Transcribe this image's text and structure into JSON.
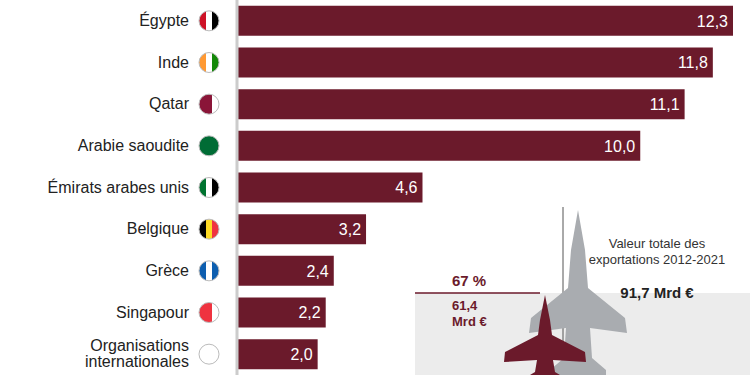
{
  "chart_data": {
    "type": "bar",
    "orientation": "horizontal",
    "categories": [
      "Égypte",
      "Inde",
      "Qatar",
      "Arabie saoudite",
      "Émirats arabes unis",
      "Belgique",
      "Grèce",
      "Singapour",
      "Organisations internationales"
    ],
    "values": [
      12.3,
      11.8,
      11.1,
      10.0,
      4.6,
      3.2,
      2.4,
      2.2,
      2.0
    ],
    "value_labels": [
      "12,3",
      "11,8",
      "11,1",
      "10,0",
      "4,6",
      "3,2",
      "2,4",
      "2,2",
      "2,0"
    ],
    "color": "#6b1a2b",
    "xlim": [
      0,
      12.3
    ],
    "data_labels": true,
    "tick_labels": "y",
    "annotations": [
      "Valeur totale des exportations 2012-2021",
      "91,7 Mrd €",
      "67 %",
      "61,4 Mrd €"
    ]
  }
}
